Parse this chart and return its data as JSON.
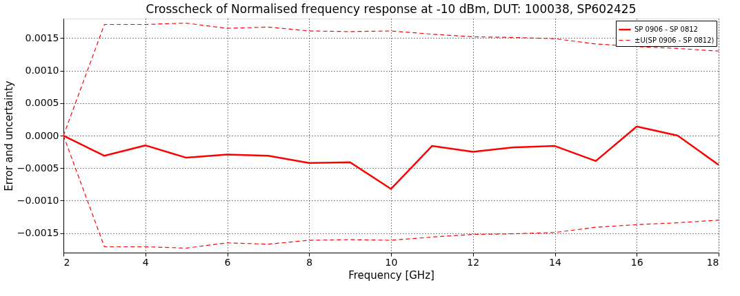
{
  "chart_data": {
    "type": "line",
    "title": "Crosscheck of Normalised frequency response at -10 dBm, DUT: 100038, SP602425",
    "xlabel": "Frequency [GHz]",
    "ylabel": "Error and uncertainty",
    "x": [
      2,
      3,
      4,
      5,
      6,
      7,
      8,
      9,
      10,
      11,
      12,
      13,
      14,
      15,
      16,
      17,
      18
    ],
    "series": [
      {
        "name": "SP 0906 - SP 0812",
        "color": "#ff0000",
        "line_style": "solid",
        "values": [
          0.0,
          -0.00031,
          -0.00015,
          -0.00034,
          -0.00029,
          -0.00031,
          -0.00042,
          -0.00041,
          -0.00082,
          -0.00016,
          -0.00025,
          -0.00018,
          -0.00016,
          -0.00039,
          0.00014,
          0.0,
          -0.00045
        ]
      },
      {
        "name": "±U(SP 0906 - SP 0812)",
        "color": "#ff0000",
        "line_style": "dashed",
        "values": [
          0.0,
          0.00171,
          0.00171,
          0.00173,
          0.00165,
          0.00167,
          0.00161,
          0.0016,
          0.00161,
          0.00156,
          0.00152,
          0.00151,
          0.00149,
          0.00141,
          0.00137,
          0.00134,
          0.0013
        ]
      },
      {
        "color": "#ff0000",
        "line_style": "dashed",
        "values": [
          0.0,
          -0.00171,
          -0.00171,
          -0.00173,
          -0.00165,
          -0.00167,
          -0.00161,
          -0.0016,
          -0.00161,
          -0.00156,
          -0.00152,
          -0.00151,
          -0.00149,
          -0.00141,
          -0.00137,
          -0.00134,
          -0.0013
        ]
      }
    ],
    "xlim": [
      2,
      18
    ],
    "xticks": [
      2,
      4,
      6,
      8,
      10,
      12,
      14,
      16,
      18
    ],
    "ylim": [
      -0.0018,
      0.0018
    ],
    "yticks": [
      {
        "value": -0.0015,
        "label": "−0.0015"
      },
      {
        "value": -0.001,
        "label": "−0.0010"
      },
      {
        "value": -0.0005,
        "label": "−0.0005"
      },
      {
        "value": 0,
        "label": "0.0000"
      },
      {
        "value": 0.0005,
        "label": "0.0005"
      },
      {
        "value": 0.001,
        "label": "0.0010"
      },
      {
        "value": 0.0015,
        "label": "0.0015"
      }
    ],
    "grid": true,
    "legend": "top right"
  }
}
